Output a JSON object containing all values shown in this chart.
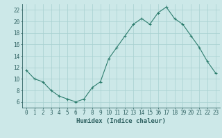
{
  "x": [
    0,
    1,
    2,
    3,
    4,
    5,
    6,
    7,
    8,
    9,
    10,
    11,
    12,
    13,
    14,
    15,
    16,
    17,
    18,
    19,
    20,
    21,
    22,
    23
  ],
  "y": [
    11.5,
    10.0,
    9.5,
    8.0,
    7.0,
    6.5,
    6.0,
    6.5,
    8.5,
    9.5,
    13.5,
    15.5,
    17.5,
    19.5,
    20.5,
    19.5,
    21.5,
    22.5,
    20.5,
    19.5,
    17.5,
    15.5,
    13.0,
    11.0
  ],
  "xlabel": "Humidex (Indice chaleur)",
  "ylim": [
    5,
    23
  ],
  "xlim": [
    -0.5,
    23.5
  ],
  "yticks": [
    6,
    8,
    10,
    12,
    14,
    16,
    18,
    20,
    22
  ],
  "xticks": [
    0,
    1,
    2,
    3,
    4,
    5,
    6,
    7,
    8,
    9,
    10,
    11,
    12,
    13,
    14,
    15,
    16,
    17,
    18,
    19,
    20,
    21,
    22,
    23
  ],
  "line_color": "#2d7d6e",
  "marker": "+",
  "bg_color": "#cce8e8",
  "grid_color": "#a8d0d0",
  "label_color": "#2d6060",
  "tick_font_size": 5.5,
  "xlabel_font_size": 6.5
}
